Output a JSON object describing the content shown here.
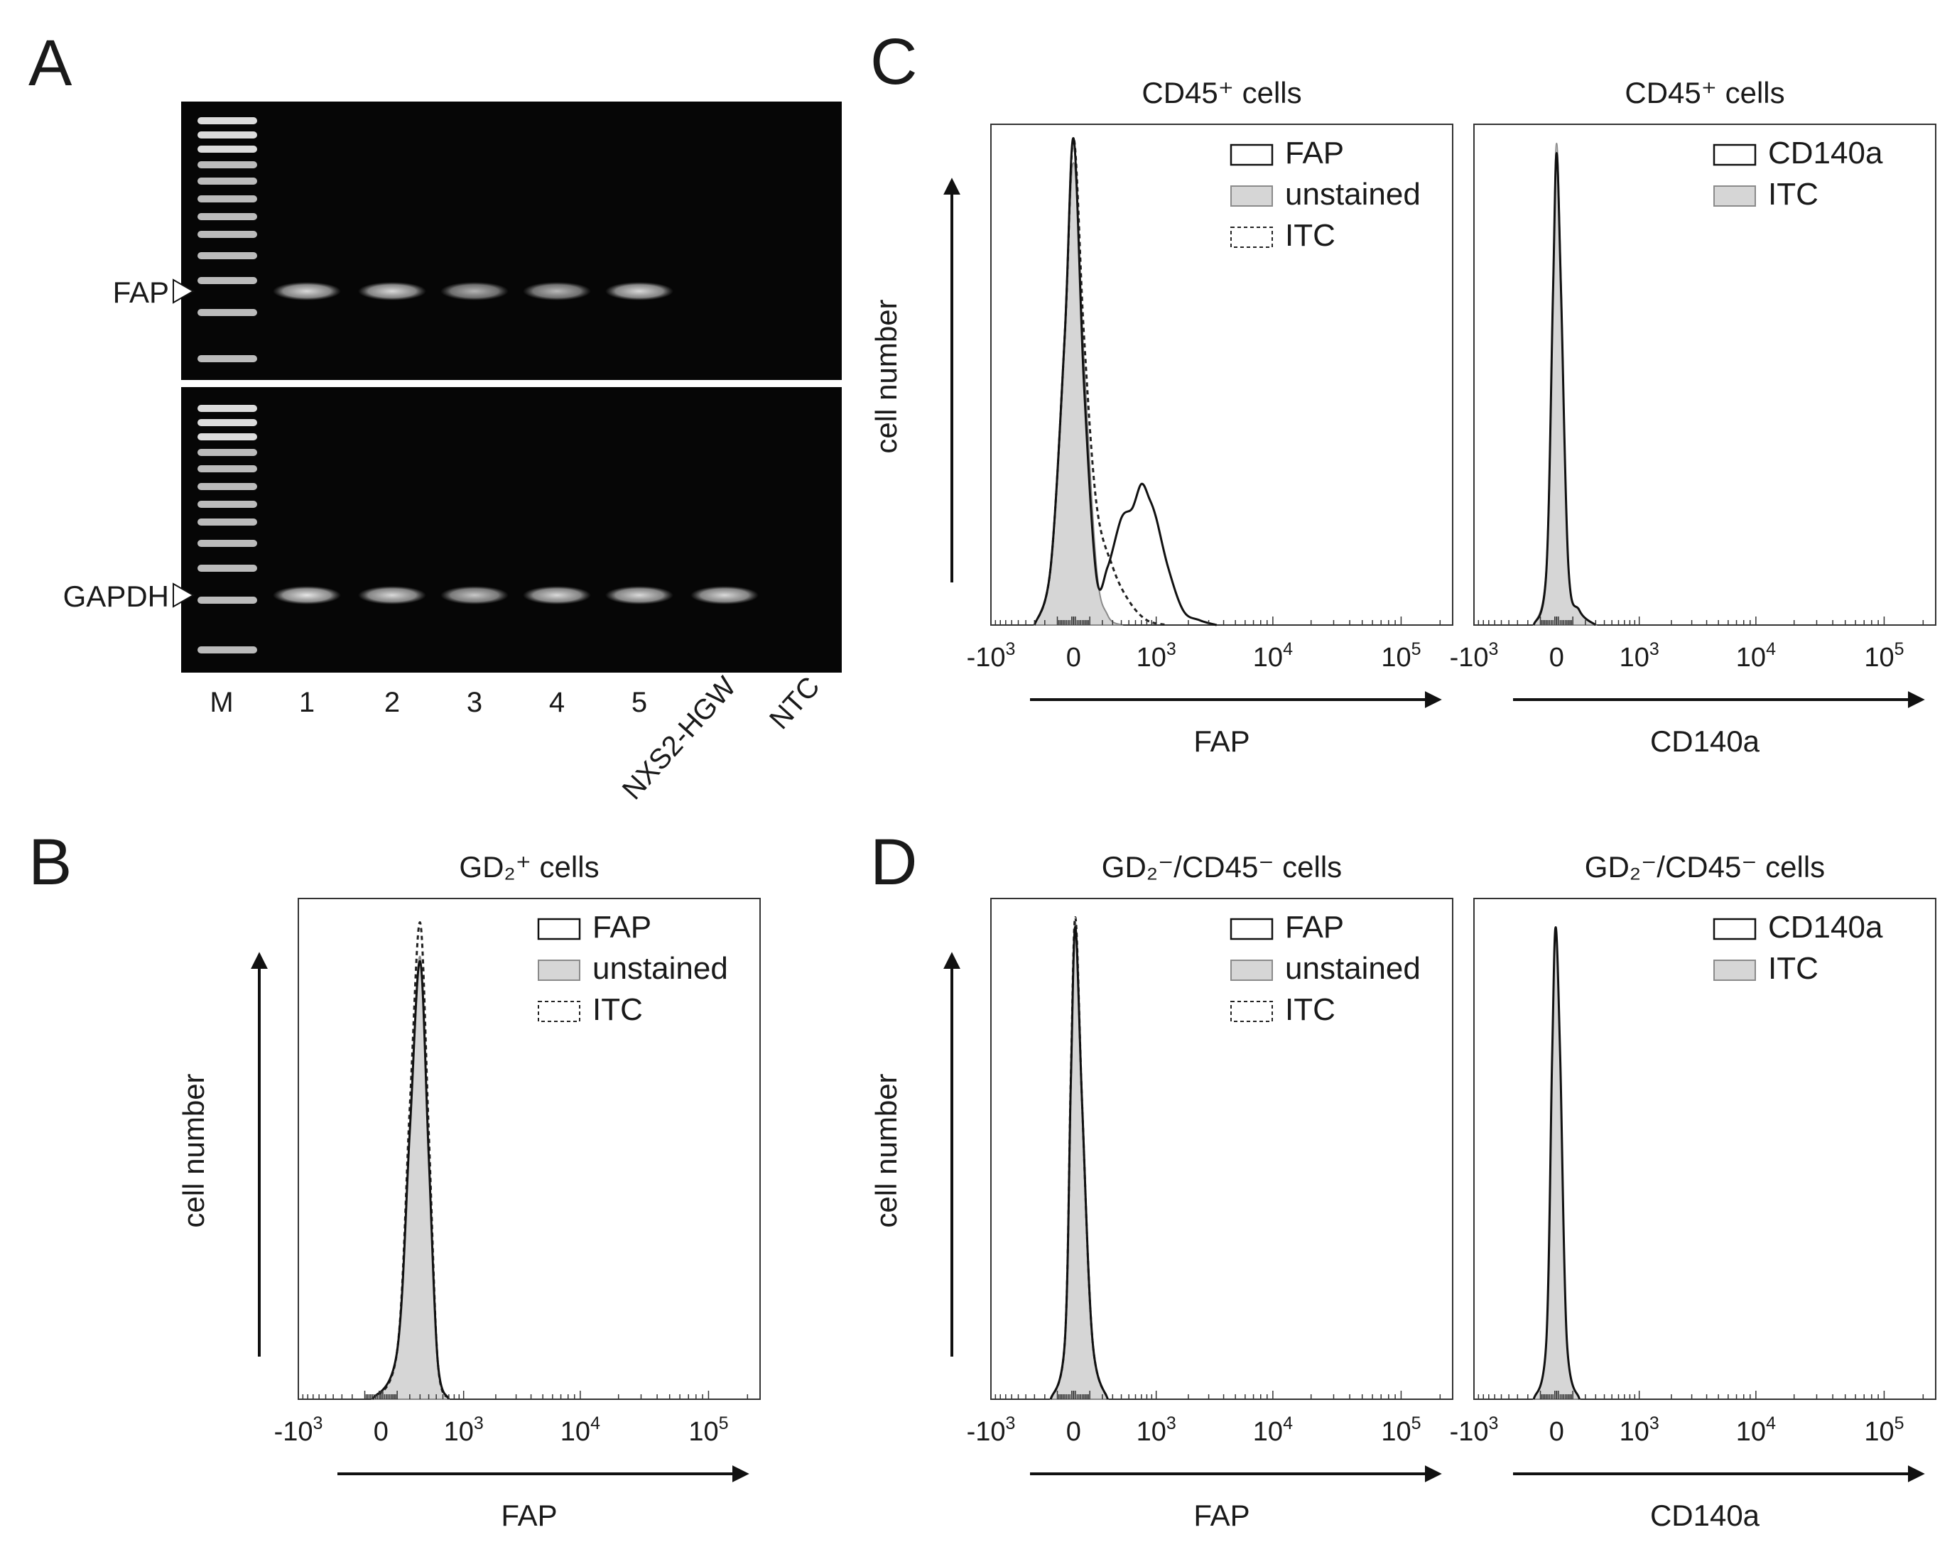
{
  "panels": {
    "A": {
      "letter": "A",
      "bands": [
        {
          "name": "FAP",
          "lanes_with_band": [
            1,
            2,
            3,
            4,
            5
          ],
          "intensity": [
            0.85,
            0.85,
            0.7,
            0.72,
            0.85,
            0,
            0
          ]
        },
        {
          "name": "GAPDH",
          "lanes_with_band": [
            1,
            2,
            3,
            4,
            5,
            6
          ],
          "intensity": [
            0.9,
            0.85,
            0.78,
            0.85,
            0.85,
            0.85,
            0
          ]
        }
      ],
      "lanes": [
        "M",
        "1",
        "2",
        "3",
        "4",
        "5",
        "NXS2-HGW",
        "NTC"
      ]
    },
    "B": {
      "letter": "B"
    },
    "C": {
      "letter": "C"
    },
    "D": {
      "letter": "D"
    }
  },
  "chart_data": [
    {
      "id": "C-FAP",
      "type": "area",
      "title": "CD45⁺ cells",
      "xlabel": "FAP",
      "ylabel": "cell number",
      "x_scale": "biexponential",
      "x_ticks": [
        {
          "base": "-10",
          "exp": "3"
        },
        {
          "base": "0",
          "exp": ""
        },
        {
          "base": "10",
          "exp": "3"
        },
        {
          "base": "10",
          "exp": "4"
        },
        {
          "base": "10",
          "exp": "5"
        }
      ],
      "legend": [
        {
          "label": "FAP",
          "style": "solid"
        },
        {
          "label": "unstained",
          "style": "filled"
        },
        {
          "label": "ITC",
          "style": "dashed"
        }
      ],
      "series": [
        {
          "name": "unstained",
          "style": "filled",
          "x": [
            -300,
            -150,
            -60,
            0,
            60,
            150,
            250,
            400
          ],
          "y": [
            0,
            0.12,
            0.55,
            0.95,
            0.55,
            0.12,
            0.02,
            0
          ]
        },
        {
          "name": "ITC",
          "style": "dashed",
          "x": [
            -300,
            -150,
            -50,
            0,
            60,
            150,
            300,
            500,
            800,
            1300
          ],
          "y": [
            0,
            0.12,
            0.6,
            1.0,
            0.6,
            0.25,
            0.12,
            0.05,
            0.01,
            0
          ]
        },
        {
          "name": "FAP",
          "style": "solid",
          "x": [
            -300,
            -150,
            -50,
            0,
            60,
            150,
            250,
            400,
            550,
            700,
            850,
            1000,
            1300,
            1800,
            2500,
            3500
          ],
          "y": [
            0,
            0.12,
            0.6,
            1.0,
            0.5,
            0.1,
            0.12,
            0.22,
            0.24,
            0.29,
            0.26,
            0.22,
            0.12,
            0.03,
            0.01,
            0
          ]
        }
      ]
    },
    {
      "id": "C-CD140a",
      "type": "area",
      "title": "CD45⁺ cells",
      "xlabel": "CD140a",
      "ylabel": "",
      "x_scale": "biexponential",
      "x_ticks": [
        {
          "base": "-10",
          "exp": "3"
        },
        {
          "base": "0",
          "exp": ""
        },
        {
          "base": "10",
          "exp": "3"
        },
        {
          "base": "10",
          "exp": "4"
        },
        {
          "base": "10",
          "exp": "5"
        }
      ],
      "legend": [
        {
          "label": "CD140a",
          "style": "solid"
        },
        {
          "label": "ITC",
          "style": "filled"
        }
      ],
      "series": [
        {
          "name": "ITC",
          "style": "filled",
          "x": [
            -150,
            -60,
            -20,
            0,
            25,
            70,
            150,
            300
          ],
          "y": [
            0,
            0.12,
            0.7,
            0.99,
            0.7,
            0.12,
            0.03,
            0
          ]
        },
        {
          "name": "CD140a",
          "style": "solid",
          "x": [
            -150,
            -60,
            -20,
            0,
            25,
            70,
            150,
            300
          ],
          "y": [
            0,
            0.11,
            0.68,
            0.97,
            0.68,
            0.12,
            0.03,
            0
          ]
        }
      ]
    },
    {
      "id": "B-FAP",
      "type": "area",
      "title": "GD₂⁺ cells",
      "xlabel": "FAP",
      "ylabel": "cell number",
      "x_scale": "biexponential",
      "x_ticks": [
        {
          "base": "-10",
          "exp": "3"
        },
        {
          "base": "0",
          "exp": ""
        },
        {
          "base": "10",
          "exp": "3"
        },
        {
          "base": "10",
          "exp": "4"
        },
        {
          "base": "10",
          "exp": "5"
        }
      ],
      "legend": [
        {
          "label": "FAP",
          "style": "solid"
        },
        {
          "label": "unstained",
          "style": "filled"
        },
        {
          "label": "ITC",
          "style": "dashed"
        }
      ],
      "series": [
        {
          "name": "unstained",
          "style": "filled",
          "x": [
            -50,
            100,
            200,
            300,
            400,
            520,
            700
          ],
          "y": [
            0,
            0.1,
            0.55,
            0.91,
            0.5,
            0.08,
            0
          ]
        },
        {
          "name": "ITC",
          "style": "dashed",
          "x": [
            -50,
            100,
            200,
            300,
            400,
            520,
            700
          ],
          "y": [
            0,
            0.1,
            0.6,
            0.98,
            0.55,
            0.08,
            0
          ]
        },
        {
          "name": "FAP",
          "style": "solid",
          "x": [
            -50,
            100,
            200,
            300,
            400,
            520,
            700
          ],
          "y": [
            0,
            0.1,
            0.55,
            0.9,
            0.5,
            0.08,
            0
          ]
        }
      ]
    },
    {
      "id": "D-FAP",
      "type": "area",
      "title": "GD₂⁻/CD45⁻ cells",
      "xlabel": "FAP",
      "ylabel": "cell number",
      "x_scale": "biexponential",
      "x_ticks": [
        {
          "base": "-10",
          "exp": "3"
        },
        {
          "base": "0",
          "exp": ""
        },
        {
          "base": "10",
          "exp": "3"
        },
        {
          "base": "10",
          "exp": "4"
        },
        {
          "base": "10",
          "exp": "5"
        }
      ],
      "legend": [
        {
          "label": "FAP",
          "style": "solid"
        },
        {
          "label": "unstained",
          "style": "filled"
        },
        {
          "label": "ITC",
          "style": "dashed"
        }
      ],
      "series": [
        {
          "name": "unstained",
          "style": "filled",
          "x": [
            -150,
            -50,
            -15,
            10,
            50,
            120,
            250
          ],
          "y": [
            0,
            0.12,
            0.65,
            0.98,
            0.6,
            0.12,
            0
          ]
        },
        {
          "name": "ITC",
          "style": "dashed",
          "x": [
            -150,
            -50,
            -15,
            10,
            50,
            120,
            250
          ],
          "y": [
            0,
            0.12,
            0.66,
            0.99,
            0.6,
            0.12,
            0
          ]
        },
        {
          "name": "FAP",
          "style": "solid",
          "x": [
            -150,
            -50,
            -15,
            10,
            50,
            120,
            250
          ],
          "y": [
            0,
            0.12,
            0.65,
            0.97,
            0.6,
            0.12,
            0
          ]
        }
      ]
    },
    {
      "id": "D-CD140a",
      "type": "area",
      "title": "GD₂⁻/CD45⁻ cells",
      "xlabel": "CD140a",
      "ylabel": "",
      "x_scale": "biexponential",
      "x_ticks": [
        {
          "base": "-10",
          "exp": "3"
        },
        {
          "base": "0",
          "exp": ""
        },
        {
          "base": "10",
          "exp": "3"
        },
        {
          "base": "10",
          "exp": "4"
        },
        {
          "base": "10",
          "exp": "5"
        }
      ],
      "legend": [
        {
          "label": "CD140a",
          "style": "solid"
        },
        {
          "label": "ITC",
          "style": "filled"
        }
      ],
      "series": [
        {
          "name": "ITC",
          "style": "filled",
          "x": [
            -150,
            -60,
            -25,
            -5,
            20,
            60,
            150
          ],
          "y": [
            0,
            0.12,
            0.7,
            0.97,
            0.7,
            0.12,
            0
          ]
        },
        {
          "name": "CD140a",
          "style": "solid",
          "x": [
            -150,
            -60,
            -25,
            -5,
            20,
            60,
            150
          ],
          "y": [
            0,
            0.12,
            0.7,
            0.97,
            0.7,
            0.12,
            0
          ]
        }
      ]
    }
  ]
}
